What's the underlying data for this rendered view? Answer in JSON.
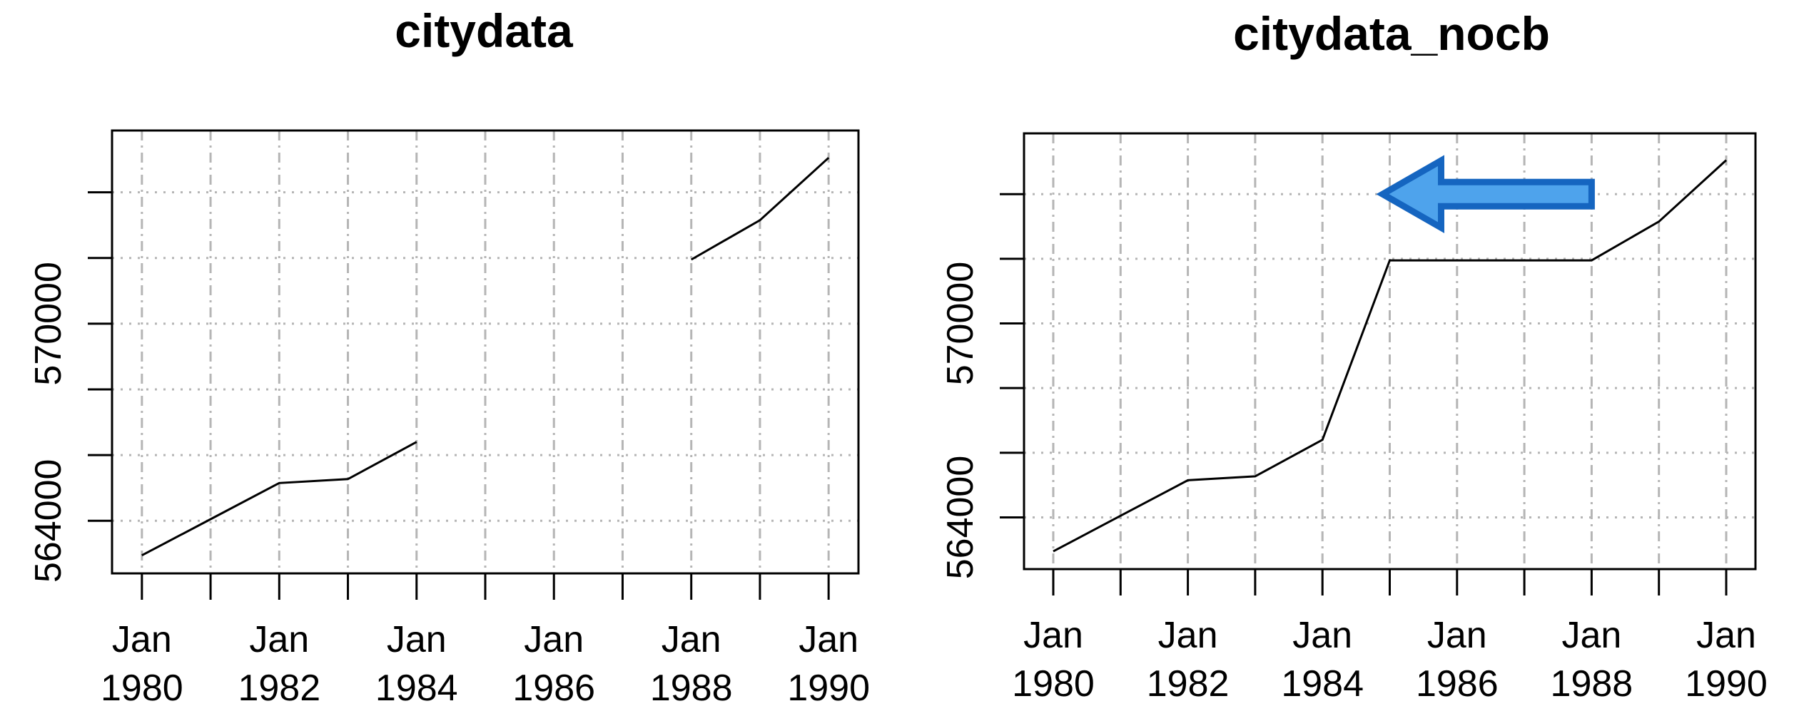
{
  "chart_data": [
    {
      "type": "line",
      "title": "citydata",
      "x": [
        "Jan 1980",
        "Jan 1981",
        "Jan 1982",
        "Jan 1983",
        "Jan 1984",
        "Jan 1985",
        "Jan 1986",
        "Jan 1987",
        "Jan 1988",
        "Jan 1989",
        "Jan 1990"
      ],
      "series": [
        {
          "values": [
            562950,
            564050,
            565150,
            565270,
            566400,
            null,
            null,
            null,
            571950,
            573150,
            575050
          ]
        }
      ],
      "xticks": [
        "Jan 1980",
        "Jan 1981",
        "Jan 1982",
        "Jan 1983",
        "Jan 1984",
        "Jan 1985",
        "Jan 1986",
        "Jan 1987",
        "Jan 1988",
        "Jan 1989",
        "Jan 1990"
      ],
      "xtick_labels": [
        {
          "month": "Jan",
          "year": "1980"
        },
        {
          "month": "Jan",
          "year": "1982"
        },
        {
          "month": "Jan",
          "year": "1984"
        },
        {
          "month": "Jan",
          "year": "1986"
        },
        {
          "month": "Jan",
          "year": "1988"
        },
        {
          "month": "Jan",
          "year": "1990"
        }
      ],
      "yticks": [
        564000,
        566000,
        568000,
        570000,
        572000,
        574000
      ],
      "ytick_labels": [
        "564000",
        "570000"
      ],
      "ylim": [
        562400,
        575880
      ],
      "grid": true
    },
    {
      "type": "line",
      "title": "citydata_nocb",
      "x": [
        "Jan 1980",
        "Jan 1981",
        "Jan 1982",
        "Jan 1983",
        "Jan 1984",
        "Jan 1985",
        "Jan 1986",
        "Jan 1987",
        "Jan 1988",
        "Jan 1989",
        "Jan 1990"
      ],
      "series": [
        {
          "values": [
            562950,
            564050,
            565150,
            565270,
            566400,
            571950,
            571950,
            571950,
            571950,
            573150,
            575050
          ]
        }
      ],
      "xticks": [
        "Jan 1980",
        "Jan 1981",
        "Jan 1982",
        "Jan 1983",
        "Jan 1984",
        "Jan 1985",
        "Jan 1986",
        "Jan 1987",
        "Jan 1988",
        "Jan 1989",
        "Jan 1990"
      ],
      "xtick_labels": [
        {
          "month": "Jan",
          "year": "1980"
        },
        {
          "month": "Jan",
          "year": "1982"
        },
        {
          "month": "Jan",
          "year": "1984"
        },
        {
          "month": "Jan",
          "year": "1986"
        },
        {
          "month": "Jan",
          "year": "1988"
        },
        {
          "month": "Jan",
          "year": "1990"
        }
      ],
      "yticks": [
        564000,
        566000,
        568000,
        570000,
        572000,
        574000
      ],
      "ytick_labels": [
        "564000",
        "570000"
      ],
      "ylim": [
        562400,
        575880
      ],
      "grid": true,
      "annotation": {
        "shape": "arrow",
        "direction": "left",
        "from_x": "Jan 1988",
        "to_x": "Jan 1985",
        "y": 574000,
        "fill": "#4ea3ec",
        "stroke": "#1565c0"
      }
    }
  ]
}
